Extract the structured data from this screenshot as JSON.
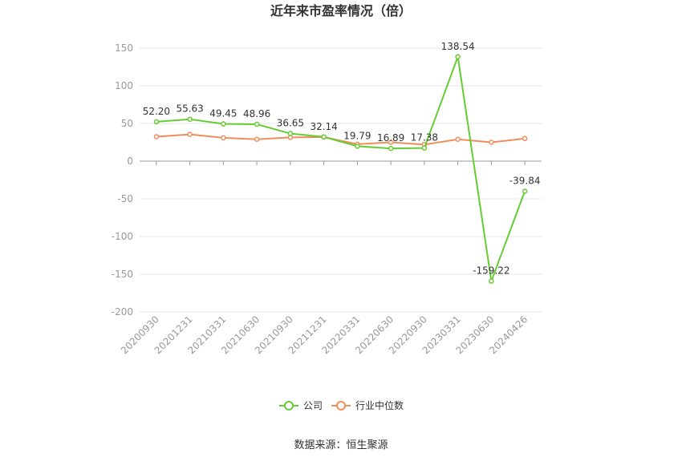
{
  "chart_data": {
    "type": "line",
    "title": "近年来市盈率情况（倍）",
    "categories": [
      "20200930",
      "20201231",
      "20210331",
      "20210630",
      "20210930",
      "20211231",
      "20220331",
      "20220630",
      "20220930",
      "20230331",
      "20230630",
      "20240426"
    ],
    "series": [
      {
        "name": "公司",
        "color": "#66cc33",
        "values": [
          52.2,
          55.63,
          49.45,
          48.96,
          36.65,
          32.14,
          19.79,
          16.89,
          17.38,
          138.54,
          -159.22,
          -39.84
        ],
        "labels": [
          "52.20",
          "55.63",
          "49.45",
          "48.96",
          "36.65",
          "32.14",
          "19.79",
          "16.89",
          "17.38",
          "138.54",
          "-159.22",
          "-39.84"
        ]
      },
      {
        "name": "行业中位数",
        "color": "#f28c5a",
        "values": [
          32.5,
          35.5,
          31.0,
          29.0,
          31.5,
          32.0,
          22.5,
          25.0,
          22.0,
          29.0,
          25.0,
          30.0
        ]
      }
    ],
    "yticks": [
      "150",
      "100",
      "50",
      "0",
      "-50",
      "-100",
      "-150",
      "-200"
    ],
    "ytick_values": [
      150,
      100,
      50,
      0,
      -50,
      -100,
      -150,
      -200
    ],
    "ylim": [
      -200,
      150
    ],
    "grid": true,
    "legend_position": "bottom-center"
  },
  "source_text": "数据来源：恒生聚源"
}
